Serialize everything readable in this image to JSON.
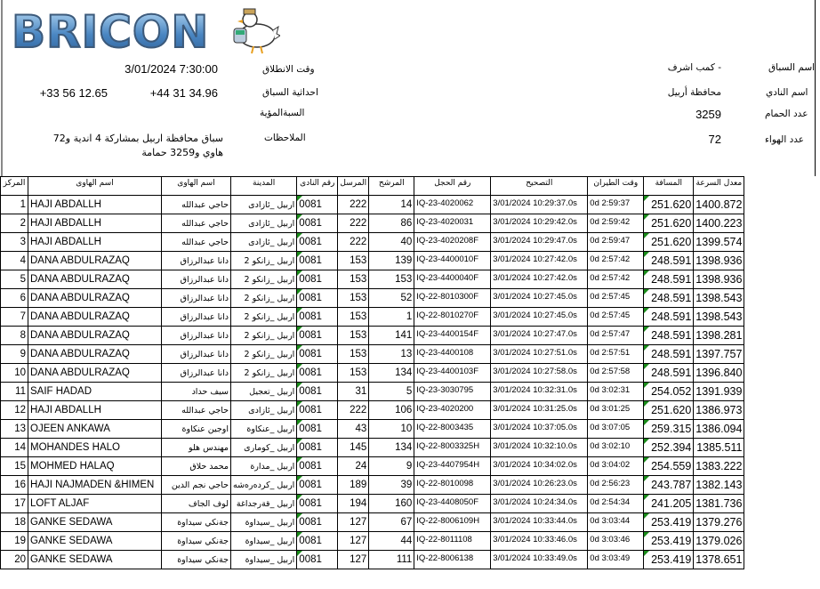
{
  "logo": {
    "text": "BRICON",
    "mascot": "pigeon-with-clock"
  },
  "header": {
    "race_name_label": "اسم السباق",
    "race_name": "كمب اشرف -",
    "club_name_label": "اسم النادي",
    "club_name": "محافظة أربيل",
    "pigeons_count_label": "عدد الحمام",
    "pigeons_count": "3259",
    "fanciers_count_label": "عدد الهواء",
    "fanciers_count": "72",
    "start_time_label": "وقت الانطلاق",
    "start_time": "3/01/2024 7:30:00",
    "coords_label": "احداثية السباق",
    "coord_lat": "+44 31 34.96",
    "coord_lon": "+33 56 12.65",
    "percent_label": "السبةالمؤية",
    "notes_label": "الملاحظات",
    "notes": "سباق محافظة اربيل بمشاركة  4 اندية و72 هاوي و3259 حمامة"
  },
  "table": {
    "columns": [
      "المركز",
      "اسم الهاوى",
      "اسم الهاوى",
      "المدينة",
      "رقم النادى",
      "المرسل",
      "المرشح",
      "رقم الحجل",
      "التصحيح",
      "وقت الطيران",
      "المسافة",
      "معدل السرعة"
    ],
    "rows": [
      [
        "1",
        "HAJI ABDALLH",
        "حاجي عبدالله",
        "اربيل _ئازادى",
        "0081",
        "222",
        "14",
        "IQ-23-4020062",
        "3/01/2024 10:29:37.0s",
        "0d 2:59:37",
        "251.620",
        "1400.872"
      ],
      [
        "2",
        "HAJI ABDALLH",
        "حاجي عبدالله",
        "اربيل _ئازادى",
        "0081",
        "222",
        "86",
        "IQ-23-4020031",
        "3/01/2024 10:29:42.0s",
        "0d 2:59:42",
        "251.620",
        "1400.223"
      ],
      [
        "3",
        "HAJI ABDALLH",
        "حاجي عبدالله",
        "اربيل _ئازادى",
        "0081",
        "222",
        "40",
        "IQ-23-4020208F",
        "3/01/2024 10:29:47.0s",
        "0d 2:59:47",
        "251.620",
        "1399.574"
      ],
      [
        "4",
        "DANA ABDULRAZAQ",
        "دانا عبدالرزاق",
        "اربيل _زانكو 2",
        "0081",
        "153",
        "139",
        "IQ-23-4400010F",
        "3/01/2024 10:27:42.0s",
        "0d 2:57:42",
        "248.591",
        "1398.936"
      ],
      [
        "5",
        "DANA ABDULRAZAQ",
        "دانا عبدالرزاق",
        "اربيل _زانكو 2",
        "0081",
        "153",
        "153",
        "IQ-23-4400040F",
        "3/01/2024 10:27:42.0s",
        "0d 2:57:42",
        "248.591",
        "1398.936"
      ],
      [
        "6",
        "DANA ABDULRAZAQ",
        "دانا عبدالرزاق",
        "اربيل _زانكو 2",
        "0081",
        "153",
        "52",
        "IQ-22-8010300F",
        "3/01/2024 10:27:45.0s",
        "0d 2:57:45",
        "248.591",
        "1398.543"
      ],
      [
        "7",
        "DANA ABDULRAZAQ",
        "دانا عبدالرزاق",
        "اربيل _زانكو 2",
        "0081",
        "153",
        "1",
        "IQ-22-8010270F",
        "3/01/2024 10:27:45.0s",
        "0d 2:57:45",
        "248.591",
        "1398.543"
      ],
      [
        "8",
        "DANA ABDULRAZAQ",
        "دانا عبدالرزاق",
        "اربيل _زانكو 2",
        "0081",
        "153",
        "141",
        "IQ-23-4400154F",
        "3/01/2024 10:27:47.0s",
        "0d 2:57:47",
        "248.591",
        "1398.281"
      ],
      [
        "9",
        "DANA ABDULRAZAQ",
        "دانا عبدالرزاق",
        "اربيل _زانكو 2",
        "0081",
        "153",
        "13",
        "IQ-23-4400108",
        "3/01/2024 10:27:51.0s",
        "0d 2:57:51",
        "248.591",
        "1397.757"
      ],
      [
        "10",
        "DANA ABDULRAZAQ",
        "دانا عبدالرزاق",
        "اربيل _زانكو 2",
        "0081",
        "153",
        "134",
        "IQ-23-4400103F",
        "3/01/2024 10:27:58.0s",
        "0d 2:57:58",
        "248.591",
        "1396.840"
      ],
      [
        "11",
        "SAIF HADAD",
        "سيف حداد",
        "اربيل _تعجيل",
        "0081",
        "31",
        "5",
        "IQ-23-3030795",
        "3/01/2024 10:32:31.0s",
        "0d 3:02:31",
        "254.052",
        "1391.939"
      ],
      [
        "12",
        "HAJI ABDALLH",
        "حاجي عبدالله",
        "اربيل _ئازادى",
        "0081",
        "222",
        "106",
        "IQ-23-4020200",
        "3/01/2024 10:31:25.0s",
        "0d 3:01:25",
        "251.620",
        "1386.973"
      ],
      [
        "13",
        "OJEEN ANKAWA",
        "اوجين عنكاوة",
        "اربيل _عنكاوة",
        "0081",
        "43",
        "10",
        "IQ-22-8003435",
        "3/01/2024 10:37:05.0s",
        "0d 3:07:05",
        "259.315",
        "1386.094"
      ],
      [
        "14",
        "MOHANDES HALO",
        "مهندس هلو",
        "اربيل _كومارى",
        "0081",
        "145",
        "134",
        "IQ-22-8003325H",
        "3/01/2024 10:32:10.0s",
        "0d 3:02:10",
        "252.394",
        "1385.511"
      ],
      [
        "15",
        "MOHMED HALAQ",
        "محمد حلاق",
        "اربيل _مدارة",
        "0081",
        "24",
        "9",
        "IQ-23-4407954H",
        "3/01/2024 10:34:02.0s",
        "0d 3:04:02",
        "254.559",
        "1383.222"
      ],
      [
        "16",
        "HAJI NAJMADEN &HIMEN",
        "حاجي نجم الدين",
        "اربيل _كردەرەشە",
        "0081",
        "189",
        "39",
        "IQ-22-8010098",
        "3/01/2024 10:26:23.0s",
        "0d 2:56:23",
        "243.787",
        "1382.143"
      ],
      [
        "17",
        "LOFT ALJAF",
        "لوف الجاف",
        "اربيل _قةرجداغة",
        "0081",
        "194",
        "160",
        "IQ-23-4408050F",
        "3/01/2024 10:24:34.0s",
        "0d 2:54:34",
        "241.205",
        "1381.736"
      ],
      [
        "18",
        "GANKE SEDAWA",
        "جةنكي سيداوة",
        "اربيل _سيداوة",
        "0081",
        "127",
        "67",
        "IQ-22-8006109H",
        "3/01/2024 10:33:44.0s",
        "0d 3:03:44",
        "253.419",
        "1379.276"
      ],
      [
        "19",
        "GANKE SEDAWA",
        "جةنكي سيداوة",
        "اربيل _سيداوة",
        "0081",
        "127",
        "44",
        "IQ-22-8011108",
        "3/01/2024 10:33:46.0s",
        "0d 3:03:46",
        "253.419",
        "1379.026"
      ],
      [
        "20",
        "GANKE SEDAWA",
        "جةنكي سيداوة",
        "اربيل _سيداوة",
        "0081",
        "127",
        "111",
        "IQ-22-8006138",
        "3/01/2024 10:33:49.0s",
        "0d 3:03:49",
        "253.419",
        "1378.651"
      ]
    ]
  }
}
